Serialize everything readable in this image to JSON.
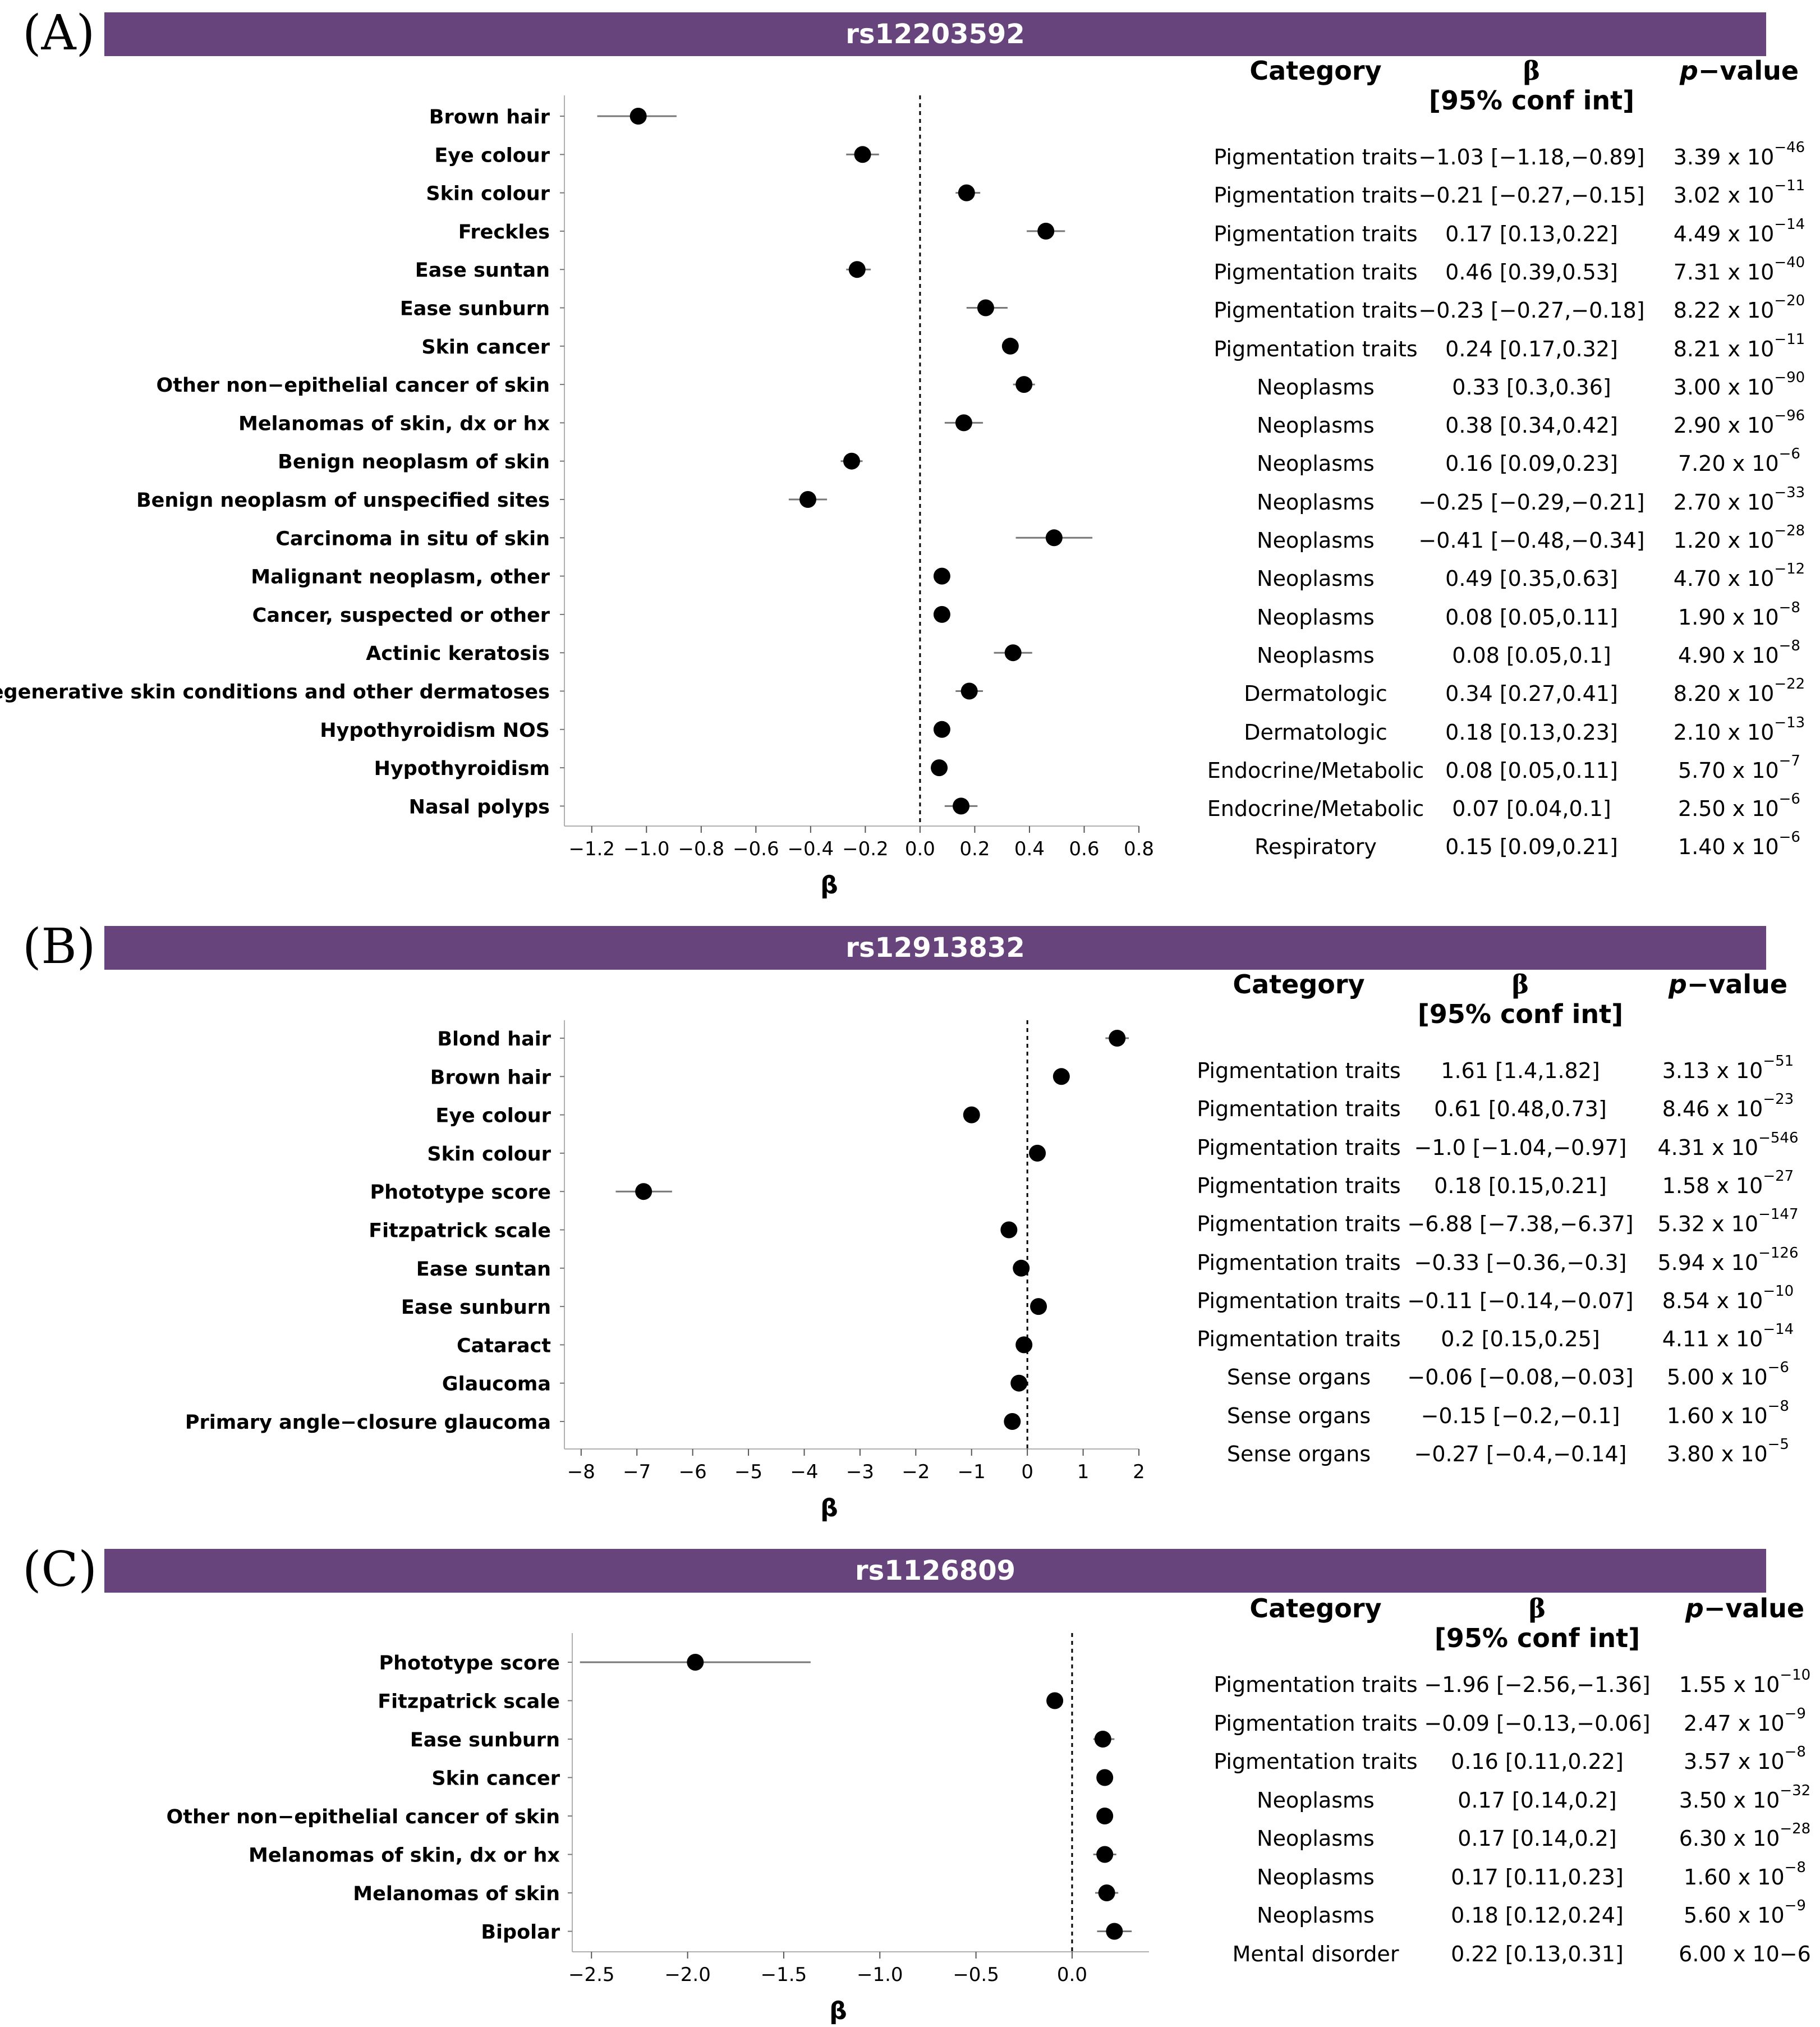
{
  "panels": [
    {
      "letter": "(A)",
      "snp": "rs12203592",
      "table_headers": {
        "category": "Category",
        "beta": "β",
        "ci": "[95% conf int]",
        "pvalue_p": "p",
        "pvalue_rest": "−value"
      },
      "chart_data": {
        "type": "forest",
        "title": "rs12203592",
        "xlabel": "β",
        "xlim": [
          -1.3,
          0.8
        ],
        "ticks": [
          -1.2,
          -1.0,
          -0.8,
          -0.6,
          -0.4,
          -0.2,
          0.0,
          0.2,
          0.4,
          0.6,
          0.8
        ],
        "tick_labels": [
          "−1.2",
          "−1.0",
          "−0.8",
          "−0.6",
          "−0.4",
          "−0.2",
          "0.0",
          "0.2",
          "0.4",
          "0.6",
          "0.8"
        ],
        "reference_line": 0,
        "rows": [
          {
            "label": "Brown hair",
            "category": "Pigmentation traits",
            "beta": -1.03,
            "lo": -1.18,
            "hi": -0.89,
            "beta_text": "−1.03 [−1.18,−0.89]",
            "p_mant": "3.39 x 10",
            "p_exp": "−46"
          },
          {
            "label": "Eye colour",
            "category": "Pigmentation traits",
            "beta": -0.21,
            "lo": -0.27,
            "hi": -0.15,
            "beta_text": "−0.21 [−0.27,−0.15]",
            "p_mant": "3.02 x 10",
            "p_exp": "−11"
          },
          {
            "label": "Skin colour",
            "category": "Pigmentation traits",
            "beta": 0.17,
            "lo": 0.13,
            "hi": 0.22,
            "beta_text": "0.17 [0.13,0.22]",
            "p_mant": "4.49 x 10",
            "p_exp": "−14"
          },
          {
            "label": "Freckles",
            "category": "Pigmentation traits",
            "beta": 0.46,
            "lo": 0.39,
            "hi": 0.53,
            "beta_text": "0.46 [0.39,0.53]",
            "p_mant": "7.31 x 10",
            "p_exp": "−40"
          },
          {
            "label": "Ease suntan",
            "category": "Pigmentation traits",
            "beta": -0.23,
            "lo": -0.27,
            "hi": -0.18,
            "beta_text": "−0.23 [−0.27,−0.18]",
            "p_mant": "8.22 x 10",
            "p_exp": "−20"
          },
          {
            "label": "Ease sunburn",
            "category": "Pigmentation traits",
            "beta": 0.24,
            "lo": 0.17,
            "hi": 0.32,
            "beta_text": "0.24 [0.17,0.32]",
            "p_mant": "8.21 x 10",
            "p_exp": "−11"
          },
          {
            "label": "Skin cancer",
            "category": "Neoplasms",
            "beta": 0.33,
            "lo": 0.3,
            "hi": 0.36,
            "beta_text": "0.33 [0.3,0.36]",
            "p_mant": "3.00 x 10",
            "p_exp": "−90"
          },
          {
            "label": "Other non−epithelial cancer of skin",
            "category": "Neoplasms",
            "beta": 0.38,
            "lo": 0.34,
            "hi": 0.42,
            "beta_text": "0.38 [0.34,0.42]",
            "p_mant": "2.90 x 10",
            "p_exp": "−96"
          },
          {
            "label": "Melanomas of skin, dx or hx",
            "category": "Neoplasms",
            "beta": 0.16,
            "lo": 0.09,
            "hi": 0.23,
            "beta_text": "0.16 [0.09,0.23]",
            "p_mant": "7.20 x 10",
            "p_exp": "−6"
          },
          {
            "label": "Benign neoplasm of skin",
            "category": "Neoplasms",
            "beta": -0.25,
            "lo": -0.29,
            "hi": -0.21,
            "beta_text": "−0.25 [−0.29,−0.21]",
            "p_mant": "2.70 x 10",
            "p_exp": "−33"
          },
          {
            "label": "Benign neoplasm of unspecified sites",
            "category": "Neoplasms",
            "beta": -0.41,
            "lo": -0.48,
            "hi": -0.34,
            "beta_text": "−0.41 [−0.48,−0.34]",
            "p_mant": "1.20 x 10",
            "p_exp": "−28"
          },
          {
            "label": "Carcinoma in situ of skin",
            "category": "Neoplasms",
            "beta": 0.49,
            "lo": 0.35,
            "hi": 0.63,
            "beta_text": "0.49 [0.35,0.63]",
            "p_mant": "4.70 x 10",
            "p_exp": "−12"
          },
          {
            "label": "Malignant neoplasm, other",
            "category": "Neoplasms",
            "beta": 0.08,
            "lo": 0.05,
            "hi": 0.11,
            "beta_text": "0.08 [0.05,0.11]",
            "p_mant": "1.90 x 10",
            "p_exp": "−8"
          },
          {
            "label": "Cancer, suspected or other",
            "category": "Neoplasms",
            "beta": 0.08,
            "lo": 0.05,
            "hi": 0.1,
            "beta_text": "0.08 [0.05,0.1]",
            "p_mant": "4.90 x 10",
            "p_exp": "−8"
          },
          {
            "label": "Actinic keratosis",
            "category": "Dermatologic",
            "beta": 0.34,
            "lo": 0.27,
            "hi": 0.41,
            "beta_text": "0.34 [0.27,0.41]",
            "p_mant": "8.20 x 10",
            "p_exp": "−22"
          },
          {
            "label": "Degenerative skin conditions and other dermatoses",
            "category": "Dermatologic",
            "beta": 0.18,
            "lo": 0.13,
            "hi": 0.23,
            "beta_text": "0.18 [0.13,0.23]",
            "p_mant": "2.10 x 10",
            "p_exp": "−13"
          },
          {
            "label": "Hypothyroidism NOS",
            "category": "Endocrine/Metabolic",
            "beta": 0.08,
            "lo": 0.05,
            "hi": 0.11,
            "beta_text": "0.08 [0.05,0.11]",
            "p_mant": "5.70 x 10",
            "p_exp": "−7"
          },
          {
            "label": "Hypothyroidism",
            "category": "Endocrine/Metabolic",
            "beta": 0.07,
            "lo": 0.04,
            "hi": 0.1,
            "beta_text": "0.07 [0.04,0.1]",
            "p_mant": "2.50 x 10",
            "p_exp": "−6"
          },
          {
            "label": "Nasal polyps",
            "category": "Respiratory",
            "beta": 0.15,
            "lo": 0.09,
            "hi": 0.21,
            "beta_text": "0.15 [0.09,0.21]",
            "p_mant": "1.40 x 10",
            "p_exp": "−6"
          }
        ]
      }
    },
    {
      "letter": "(B)",
      "snp": "rs12913832",
      "table_headers": {
        "category": "Category",
        "beta": "β",
        "ci": "[95% conf int]",
        "pvalue_p": "p",
        "pvalue_rest": "−value"
      },
      "chart_data": {
        "type": "forest",
        "title": "rs12913832",
        "xlabel": "β",
        "xlim": [
          -8.3,
          2.0
        ],
        "ticks": [
          -8,
          -7,
          -6,
          -5,
          -4,
          -3,
          -2,
          -1,
          0,
          1,
          2
        ],
        "tick_labels": [
          "−8",
          "−7",
          "−6",
          "−5",
          "−4",
          "−3",
          "−2",
          "−1",
          "0",
          "1",
          "2"
        ],
        "reference_line": 0,
        "rows": [
          {
            "label": "Blond hair",
            "category": "Pigmentation traits",
            "beta": 1.61,
            "lo": 1.4,
            "hi": 1.82,
            "beta_text": "1.61 [1.4,1.82]",
            "p_mant": "3.13 x 10",
            "p_exp": "−51"
          },
          {
            "label": "Brown hair",
            "category": "Pigmentation traits",
            "beta": 0.61,
            "lo": 0.48,
            "hi": 0.73,
            "beta_text": "0.61 [0.48,0.73]",
            "p_mant": "8.46 x 10",
            "p_exp": "−23"
          },
          {
            "label": "Eye colour",
            "category": "Pigmentation traits",
            "beta": -1.0,
            "lo": -1.04,
            "hi": -0.97,
            "beta_text": "−1.0 [−1.04,−0.97]",
            "p_mant": "4.31 x 10",
            "p_exp": "−546"
          },
          {
            "label": "Skin colour",
            "category": "Pigmentation traits",
            "beta": 0.18,
            "lo": 0.15,
            "hi": 0.21,
            "beta_text": "0.18 [0.15,0.21]",
            "p_mant": "1.58 x 10",
            "p_exp": "−27"
          },
          {
            "label": "Phototype score",
            "category": "Pigmentation traits",
            "beta": -6.88,
            "lo": -7.38,
            "hi": -6.37,
            "beta_text": "−6.88 [−7.38,−6.37]",
            "p_mant": "5.32 x 10",
            "p_exp": "−147"
          },
          {
            "label": "Fitzpatrick scale",
            "category": "Pigmentation traits",
            "beta": -0.33,
            "lo": -0.36,
            "hi": -0.3,
            "beta_text": "−0.33 [−0.36,−0.3]",
            "p_mant": "5.94 x 10",
            "p_exp": "−126"
          },
          {
            "label": "Ease suntan",
            "category": "Pigmentation traits",
            "beta": -0.11,
            "lo": -0.14,
            "hi": -0.07,
            "beta_text": "−0.11 [−0.14,−0.07]",
            "p_mant": "8.54 x 10",
            "p_exp": "−10"
          },
          {
            "label": "Ease sunburn",
            "category": "Pigmentation traits",
            "beta": 0.2,
            "lo": 0.15,
            "hi": 0.25,
            "beta_text": "0.2 [0.15,0.25]",
            "p_mant": "4.11 x 10",
            "p_exp": "−14"
          },
          {
            "label": "Cataract",
            "category": "Sense organs",
            "beta": -0.06,
            "lo": -0.08,
            "hi": -0.03,
            "beta_text": "−0.06 [−0.08,−0.03]",
            "p_mant": "5.00 x 10",
            "p_exp": "−6"
          },
          {
            "label": "Glaucoma",
            "category": "Sense organs",
            "beta": -0.15,
            "lo": -0.2,
            "hi": -0.1,
            "beta_text": "−0.15 [−0.2,−0.1]",
            "p_mant": "1.60 x 10",
            "p_exp": "−8"
          },
          {
            "label": "Primary angle−closure glaucoma",
            "category": "Sense organs",
            "beta": -0.27,
            "lo": -0.4,
            "hi": -0.14,
            "beta_text": "−0.27 [−0.4,−0.14]",
            "p_mant": "3.80 x 10",
            "p_exp": "−5"
          }
        ]
      }
    },
    {
      "letter": "(C)",
      "snp": "rs1126809",
      "table_headers": {
        "category": "Category",
        "beta": "β",
        "ci": "[95% conf int]",
        "pvalue_p": "p",
        "pvalue_rest": "−value"
      },
      "chart_data": {
        "type": "forest",
        "title": "rs1126809",
        "xlabel": "β",
        "xlim": [
          -2.6,
          0.4
        ],
        "ticks": [
          -2.5,
          -2.0,
          -1.5,
          -1.0,
          -0.5,
          0.0
        ],
        "tick_labels": [
          "−2.5",
          "−2.0",
          "−1.5",
          "−1.0",
          "−0.5",
          "0.0"
        ],
        "reference_line": 0,
        "rows": [
          {
            "label": "Phototype score",
            "category": "Pigmentation traits",
            "beta": -1.96,
            "lo": -2.56,
            "hi": -1.36,
            "beta_text": "−1.96 [−2.56,−1.36]",
            "p_mant": "1.55 x 10",
            "p_exp": "−10"
          },
          {
            "label": "Fitzpatrick scale",
            "category": "Pigmentation traits",
            "beta": -0.09,
            "lo": -0.13,
            "hi": -0.06,
            "beta_text": "−0.09 [−0.13,−0.06]",
            "p_mant": "2.47 x 10",
            "p_exp": "−9"
          },
          {
            "label": "Ease sunburn",
            "category": "Pigmentation traits",
            "beta": 0.16,
            "lo": 0.11,
            "hi": 0.22,
            "beta_text": "0.16 [0.11,0.22]",
            "p_mant": "3.57 x 10",
            "p_exp": "−8"
          },
          {
            "label": "Skin cancer",
            "category": "Neoplasms",
            "beta": 0.17,
            "lo": 0.14,
            "hi": 0.2,
            "beta_text": "0.17 [0.14,0.2]",
            "p_mant": "3.50 x 10",
            "p_exp": "−32"
          },
          {
            "label": "Other non−epithelial cancer of skin",
            "category": "Neoplasms",
            "beta": 0.17,
            "lo": 0.14,
            "hi": 0.2,
            "beta_text": "0.17 [0.14,0.2]",
            "p_mant": "6.30 x 10",
            "p_exp": "−28"
          },
          {
            "label": "Melanomas of skin, dx or hx",
            "category": "Neoplasms",
            "beta": 0.17,
            "lo": 0.11,
            "hi": 0.23,
            "beta_text": "0.17 [0.11,0.23]",
            "p_mant": "1.60 x 10",
            "p_exp": "−8"
          },
          {
            "label": "Melanomas of skin",
            "category": "Neoplasms",
            "beta": 0.18,
            "lo": 0.12,
            "hi": 0.24,
            "beta_text": "0.18 [0.12,0.24]",
            "p_mant": "5.60 x 10",
            "p_exp": "−9"
          },
          {
            "label": "Bipolar",
            "category": "Mental disorder",
            "beta": 0.22,
            "lo": 0.13,
            "hi": 0.31,
            "beta_text": "0.22 [0.13,0.31]",
            "p_mant": "6.00 x 10−6",
            "p_exp": ""
          }
        ]
      }
    }
  ]
}
